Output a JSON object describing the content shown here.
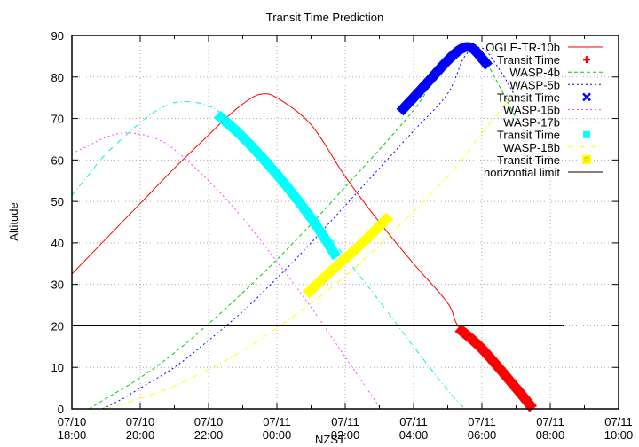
{
  "chart_data": {
    "type": "line",
    "title": "Transit Time Prediction",
    "xlabel": "NZST",
    "ylabel": "Altitude",
    "ylim": [
      0,
      90
    ],
    "yticks": [
      0,
      10,
      20,
      30,
      40,
      50,
      60,
      70,
      80,
      90
    ],
    "xticks": [
      {
        "date": "07/10",
        "time": "18:00",
        "h": 0
      },
      {
        "date": "07/10",
        "time": "20:00",
        "h": 2
      },
      {
        "date": "07/10",
        "time": "22:00",
        "h": 4
      },
      {
        "date": "07/11",
        "time": "00:00",
        "h": 6
      },
      {
        "date": "07/11",
        "time": "02:00",
        "h": 8
      },
      {
        "date": "07/11",
        "time": "04:00",
        "h": 10
      },
      {
        "date": "07/11",
        "time": "06:00",
        "h": 12
      },
      {
        "date": "07/11",
        "time": "08:00",
        "h": 14
      },
      {
        "date": "07/11",
        "time": "10:00",
        "h": 16
      }
    ],
    "x_unit": "hours since 07/10 18:00",
    "xlim": [
      0,
      16
    ],
    "grid": true,
    "legend_position": "top-right inside",
    "series": [
      {
        "name": "OGLE-TR-10b",
        "style": "line",
        "color": "#ff0000",
        "x": [
          0,
          1,
          2,
          3,
          4,
          4.5,
          5,
          5.5,
          6,
          7,
          8,
          9,
          10,
          11,
          11.3,
          12,
          13,
          13.5
        ],
        "y": [
          32.5,
          41,
          49.5,
          58,
          66,
          70,
          73.5,
          75.8,
          75,
          68.5,
          56,
          45,
          35,
          25.5,
          20,
          14.5,
          5,
          0
        ]
      },
      {
        "name": "Transit Time",
        "style": "points",
        "marker": "plus",
        "color": "#ff0000",
        "x": [
          11.3,
          12,
          13,
          13.5
        ],
        "y": [
          19.5,
          14.5,
          5,
          0
        ]
      },
      {
        "name": "WASP-4b",
        "style": "dashed",
        "color": "#00cc00",
        "x": [
          0.5,
          1,
          2,
          3,
          4,
          5,
          6,
          7,
          8,
          9,
          10,
          10.5,
          11,
          11.5,
          12,
          12.5,
          13
        ],
        "y": [
          0,
          2.5,
          7.5,
          13.5,
          20.5,
          28,
          36,
          44.5,
          53.5,
          62.5,
          72,
          78,
          84,
          88,
          85,
          78,
          70
        ]
      },
      {
        "name": "WASP-5b",
        "style": "dotted",
        "color": "#0000ff",
        "x": [
          0.9,
          1.5,
          2,
          3,
          4,
          5,
          6,
          7,
          8,
          9,
          10,
          11,
          11.5,
          12,
          12.5,
          13
        ],
        "y": [
          0,
          2.5,
          5,
          10,
          16.5,
          23.5,
          31.5,
          40,
          49,
          58,
          67,
          76,
          85,
          87,
          82,
          75
        ]
      },
      {
        "name": "Transit Time",
        "style": "points",
        "marker": "cross",
        "color": "#0000ff",
        "x": [
          9.6,
          10,
          10.5,
          11,
          11.4,
          11.7,
          12,
          12.2
        ],
        "y": [
          71.5,
          75,
          79.5,
          84,
          86.8,
          87,
          84.5,
          82.5
        ]
      },
      {
        "name": "WASP-16b",
        "style": "dotted",
        "color": "#ff44ff",
        "x": [
          0,
          0.5,
          1,
          1.5,
          2,
          2.5,
          3,
          4,
          5,
          6,
          7,
          8,
          9
        ],
        "y": [
          61.5,
          63.5,
          65.5,
          66.5,
          66.2,
          65,
          62.5,
          55,
          46,
          35.5,
          24.5,
          12.5,
          0.5
        ]
      },
      {
        "name": "WASP-17b",
        "style": "dash-dot",
        "color": "#00eeee",
        "x": [
          0,
          0.5,
          1,
          2,
          2.5,
          3,
          3.5,
          4,
          4.5,
          5,
          6,
          7,
          8,
          9,
          10,
          11,
          11.5
        ],
        "y": [
          51.5,
          56.5,
          61.5,
          69,
          72,
          73.8,
          74,
          73,
          70.5,
          66.5,
          57.5,
          47.5,
          36.5,
          26,
          15,
          4.5,
          0
        ]
      },
      {
        "name": "Transit Time",
        "style": "points",
        "marker": "filled-square",
        "color": "#00ffff",
        "x": [
          4.25,
          5,
          6,
          7,
          7.75
        ],
        "y": [
          71,
          65.5,
          56.5,
          46,
          36.5
        ]
      },
      {
        "name": "WASP-18b",
        "style": "dash-dot",
        "color": "#ffff00",
        "x": [
          1,
          2,
          3,
          4,
          5,
          6,
          7,
          8,
          9,
          10,
          11,
          11.5,
          12,
          13
        ],
        "y": [
          0,
          2.5,
          5.5,
          9.5,
          14,
          19.5,
          25.5,
          32,
          39.5,
          47.5,
          56,
          61,
          66.5,
          76.5
        ]
      },
      {
        "name": "Transit Time",
        "style": "points",
        "marker": "square",
        "color": "#ffff00",
        "x": [
          6.85,
          7.5,
          8.5,
          9.3
        ],
        "y": [
          27.5,
          32.5,
          40,
          46.5
        ]
      },
      {
        "name": "horizontial limit",
        "style": "line",
        "color": "#000000",
        "x": [
          0,
          14.4
        ],
        "y": [
          20,
          20
        ]
      }
    ]
  }
}
